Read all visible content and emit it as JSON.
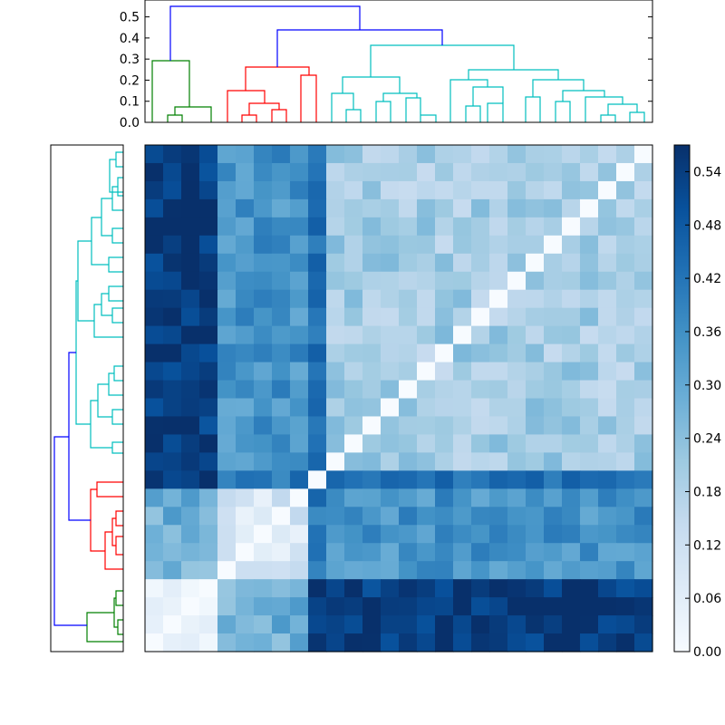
{
  "chart_data": [
    {
      "type": "dendrogram",
      "orientation": "top",
      "ylim": [
        0,
        0.58
      ],
      "yticks": [
        "0.0",
        "0.1",
        "0.2",
        "0.3",
        "0.4",
        "0.5"
      ],
      "cluster_colors": {
        "green": "#008000",
        "red": "#ff0000",
        "cyan": "#00bfbf",
        "blue": "#0000ff"
      }
    },
    {
      "type": "dendrogram",
      "orientation": "left",
      "cluster_colors": {
        "green": "#008000",
        "red": "#ff0000",
        "cyan": "#00bfbf",
        "blue": "#0000ff"
      }
    },
    {
      "type": "heatmap",
      "rows": 28,
      "cols": 28,
      "colormap": "Blues",
      "vmin": 0.0,
      "vmax": 0.57,
      "diagonal_value": 0.0,
      "clusters": [
        {
          "name": "green",
          "size": 4
        },
        {
          "name": "red",
          "size": 5
        },
        {
          "name": "cyan",
          "size": 19
        }
      ],
      "block_levels": [
        [
          0.05,
          0.28,
          0.55
        ],
        [
          0.28,
          0.1,
          0.35
        ],
        [
          0.55,
          0.35,
          0.2
        ]
      ],
      "outlier_column": {
        "index": 9,
        "value": 0.47
      }
    },
    {
      "type": "colorbar",
      "colormap": "Blues",
      "ticks": [
        "0.00",
        "0.06",
        "0.12",
        "0.18",
        "0.24",
        "0.30",
        "0.36",
        "0.42",
        "0.48",
        "0.54"
      ],
      "ylim": [
        0.0,
        0.57
      ]
    }
  ]
}
